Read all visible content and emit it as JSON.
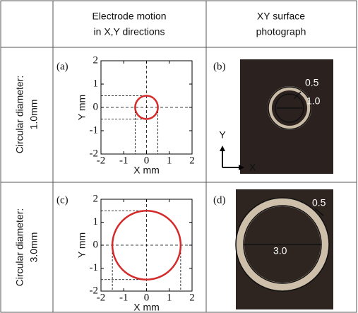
{
  "chart_data": [
    {
      "type": "circle",
      "panel": "(a)",
      "x_label": "X mm",
      "y_label": "Y mm",
      "xlim": [
        -2,
        2
      ],
      "ylim": [
        -2,
        2
      ],
      "xticks": [
        -2,
        -1,
        0,
        1,
        2
      ],
      "yticks": [
        -2,
        -1,
        0,
        1,
        2
      ],
      "circle": {
        "cx": 0,
        "cy": 0,
        "r": 0.5
      },
      "color": "#d42a2a"
    },
    {
      "type": "circle",
      "panel": "(c)",
      "x_label": "X mm",
      "y_label": "Y mm",
      "xlim": [
        -2,
        2
      ],
      "ylim": [
        -2,
        2
      ],
      "xticks": [
        -2,
        -1,
        0,
        1,
        2
      ],
      "yticks": [
        -2,
        -1,
        0,
        1,
        2
      ],
      "circle": {
        "cx": 0,
        "cy": 0,
        "r": 1.5
      },
      "color": "#d42a2a"
    }
  ],
  "table": {
    "header": [
      [
        "Electrode motion",
        "in X,Y directions"
      ],
      [
        "XY surface",
        "photograph"
      ]
    ],
    "rows": [
      {
        "label": [
          "Circular diameter:",
          "1.0mm"
        ],
        "photo": {
          "panel": "(b)",
          "labels": [
            "0.5",
            "1.0"
          ],
          "axis_y": "Y",
          "axis_x": "X"
        }
      },
      {
        "label": [
          "Circular diameter:",
          "3.0mm"
        ],
        "photo": {
          "panel": "(d)",
          "labels": [
            "0.5",
            "3.0"
          ]
        }
      }
    ]
  }
}
